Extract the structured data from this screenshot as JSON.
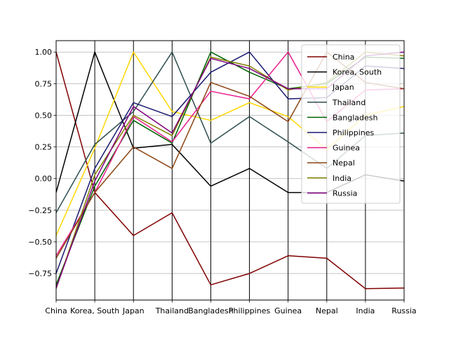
{
  "chart_data": {
    "type": "line",
    "title": "",
    "xlabel": "",
    "ylabel": "",
    "categories": [
      "China",
      "Korea, South",
      "Japan",
      "Thailand",
      "Bangladesh",
      "Philippines",
      "Guinea",
      "Nepal",
      "India",
      "Russia"
    ],
    "ylim": [
      -0.96,
      1.09
    ],
    "yticks": [
      -0.75,
      -0.5,
      -0.25,
      0.0,
      0.25,
      0.5,
      0.75,
      1.0
    ],
    "ytick_labels": [
      "−0.75",
      "−0.50",
      "−0.25",
      "0.00",
      "0.25",
      "0.50",
      "0.75",
      "1.00"
    ],
    "grid": true,
    "legend_position": "upper right",
    "series": [
      {
        "name": "China",
        "color": "#800000",
        "values": [
          1.0,
          -0.11,
          -0.45,
          -0.27,
          -0.84,
          -0.75,
          -0.61,
          -0.63,
          -0.87,
          -0.865
        ]
      },
      {
        "name": "Korea, South",
        "color": "#000000",
        "values": [
          -0.11,
          1.0,
          0.24,
          0.27,
          -0.06,
          0.08,
          -0.11,
          -0.11,
          0.03,
          -0.02
        ]
      },
      {
        "name": "Japan",
        "color": "#FFD700",
        "values": [
          -0.45,
          0.24,
          1.0,
          0.53,
          0.46,
          0.6,
          0.49,
          0.23,
          0.5,
          0.57
        ]
      },
      {
        "name": "Thailand",
        "color": "#2F4F4F",
        "values": [
          -0.27,
          0.27,
          0.53,
          1.0,
          0.28,
          0.49,
          0.29,
          0.08,
          0.34,
          0.36
        ]
      },
      {
        "name": "Bangladesh",
        "color": "#006400",
        "values": [
          -0.84,
          -0.06,
          0.46,
          0.28,
          1.0,
          0.84,
          0.71,
          0.75,
          0.96,
          0.95
        ]
      },
      {
        "name": "Philippines",
        "color": "#191970",
        "values": [
          -0.75,
          0.08,
          0.6,
          0.49,
          0.84,
          1.0,
          0.63,
          0.64,
          0.89,
          0.87
        ]
      },
      {
        "name": "Guinea",
        "color": "#E91E8C",
        "values": [
          -0.61,
          -0.11,
          0.49,
          0.29,
          0.69,
          0.63,
          1.0,
          0.45,
          0.7,
          0.71
        ]
      },
      {
        "name": "Nepal",
        "color": "#8B4513",
        "values": [
          -0.63,
          -0.11,
          0.25,
          0.08,
          0.76,
          0.65,
          0.45,
          1.0,
          0.76,
          0.71
        ]
      },
      {
        "name": "India",
        "color": "#808000",
        "values": [
          -0.87,
          0.03,
          0.5,
          0.34,
          0.96,
          0.89,
          0.7,
          0.76,
          1.0,
          0.97
        ]
      },
      {
        "name": "Russia",
        "color": "#800080",
        "values": [
          -0.865,
          -0.02,
          0.57,
          0.36,
          0.95,
          0.87,
          0.71,
          0.71,
          0.97,
          1.0
        ]
      }
    ]
  }
}
